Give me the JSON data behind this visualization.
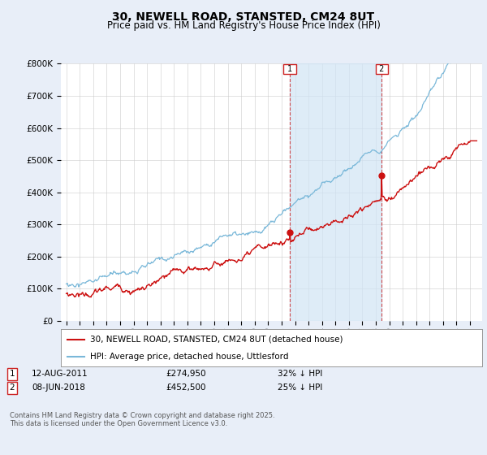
{
  "title": "30, NEWELL ROAD, STANSTED, CM24 8UT",
  "subtitle": "Price paid vs. HM Land Registry's House Price Index (HPI)",
  "ytick_labels": [
    "£0",
    "£100K",
    "£200K",
    "£300K",
    "£400K",
    "£500K",
    "£600K",
    "£700K",
    "£800K"
  ],
  "yticks": [
    0,
    100000,
    200000,
    300000,
    400000,
    500000,
    600000,
    700000,
    800000
  ],
  "hpi_color": "#7ab8d9",
  "sale_color": "#cc1111",
  "marker1_x": 2011.61,
  "marker2_x": 2018.44,
  "marker1_price": 274950,
  "marker2_price": 452500,
  "legend1": "30, NEWELL ROAD, STANSTED, CM24 8UT (detached house)",
  "legend2": "HPI: Average price, detached house, Uttlesford",
  "ann1_date": "12-AUG-2011",
  "ann1_price": "£274,950",
  "ann1_pct": "32% ↓ HPI",
  "ann2_date": "08-JUN-2018",
  "ann2_price": "£452,500",
  "ann2_pct": "25% ↓ HPI",
  "footer": "Contains HM Land Registry data © Crown copyright and database right 2025.\nThis data is licensed under the Open Government Licence v3.0.",
  "bg_color": "#e8eef8",
  "plot_bg": "#ffffff",
  "shade_color": "#d0e4f5"
}
